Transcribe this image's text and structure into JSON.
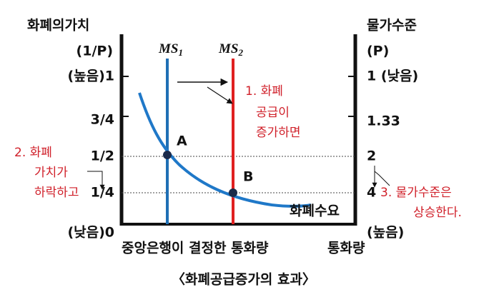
{
  "left_axis": {
    "title": "화폐의가치",
    "unit": "(1/P)",
    "labels": [
      "(높음)1",
      "3/4",
      "1/2",
      "1/4",
      "(낮음)0"
    ]
  },
  "right_axis": {
    "title": "물가수준",
    "unit": "(P)",
    "labels": [
      "1 (낮음)",
      "1.33",
      "2",
      "4",
      "(높음)"
    ]
  },
  "x_axis": {
    "label": "중앙은행이 결정한 통화량",
    "end_label": "통화량"
  },
  "curves": {
    "ms1": {
      "name": "MS",
      "sub": "1"
    },
    "ms2": {
      "name": "MS",
      "sub": "2"
    },
    "demand": "화폐수요"
  },
  "points": [
    "A",
    "B"
  ],
  "annotations": [
    [
      "1. 화폐",
      "공급이",
      "증가하면"
    ],
    [
      "2.  화폐",
      "가치가",
      "하락하고"
    ],
    [
      "3.  물가수준은",
      "상승한다."
    ]
  ],
  "caption": "〈화폐공급증가의 효과〉"
}
